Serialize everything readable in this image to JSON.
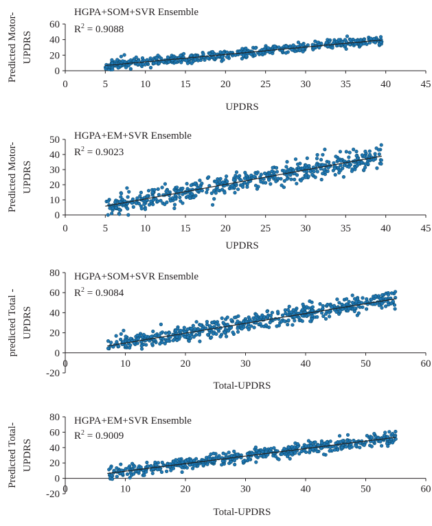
{
  "chart_data": [
    {
      "type": "scatter",
      "title": "HGPA+SOM+SVR Ensemble",
      "r2_label": " = 0.9088",
      "xlabel": "UPDRS",
      "ylabel": [
        "Predicted Motor-",
        "UPDRS"
      ],
      "xlim": [
        0,
        45
      ],
      "ylim": [
        0,
        60
      ],
      "xticks": [
        0,
        5,
        10,
        15,
        20,
        25,
        30,
        35,
        40,
        45
      ],
      "yticks": [
        0,
        20,
        40,
        60
      ],
      "x_range": [
        5,
        39.5
      ],
      "trend": {
        "slope": 0.95,
        "intercept": 1.9
      },
      "spread": 3.2,
      "n_points": 520,
      "seed": 11,
      "point_color": "#1f77b4",
      "trend_color": "#222222"
    },
    {
      "type": "scatter",
      "title": "HGPA+EM+SVR Ensemble",
      "r2_label": " = 0.9023",
      "xlabel": "UPDRS",
      "ylabel": [
        "Predicted Motor-",
        "UPDRS"
      ],
      "xlim": [
        0,
        45
      ],
      "ylim": [
        0,
        50
      ],
      "xticks": [
        0,
        5,
        10,
        15,
        20,
        25,
        30,
        35,
        40,
        45
      ],
      "yticks": [
        0,
        10,
        20,
        30,
        40,
        50
      ],
      "x_range": [
        5,
        39.5
      ],
      "trend": {
        "slope": 0.96,
        "intercept": 1.0
      },
      "spread": 3.3,
      "n_points": 520,
      "seed": 23,
      "point_color": "#1f77b4",
      "trend_color": "#222222"
    },
    {
      "type": "scatter",
      "title": "HGPA+SOM+SVR Ensemble",
      "r2_label": " = 0.9084",
      "xlabel": "Total-UPDRS",
      "ylabel": [
        "predicted Total -",
        "UPDRS"
      ],
      "xlim": [
        0,
        60
      ],
      "ylim": [
        -20,
        80
      ],
      "xticks": [
        0,
        10,
        20,
        30,
        40,
        50,
        60
      ],
      "yticks": [
        -20,
        0,
        20,
        40,
        60,
        80
      ],
      "x_range": [
        7,
        55
      ],
      "trend": {
        "slope": 0.98,
        "intercept": 0.0
      },
      "spread": 4.2,
      "n_points": 560,
      "seed": 37,
      "point_color": "#1f77b4",
      "trend_color": "#222222"
    },
    {
      "type": "scatter",
      "title": "HGPA+EM+SVR Ensemble",
      "r2_label": " = 0.9009",
      "xlabel": "Total-UPDRS",
      "ylabel": [
        "Predicted Total-",
        "UPDRS"
      ],
      "xlim": [
        0,
        60
      ],
      "ylim": [
        -20,
        80
      ],
      "xticks": [
        0,
        10,
        20,
        30,
        40,
        50,
        60
      ],
      "yticks": [
        -20,
        0,
        20,
        40,
        60,
        80
      ],
      "x_range": [
        7,
        55
      ],
      "trend": {
        "slope": 0.98,
        "intercept": -0.5
      },
      "spread": 4.0,
      "n_points": 560,
      "seed": 53,
      "point_color": "#1f77b4",
      "trend_color": "#222222"
    }
  ]
}
